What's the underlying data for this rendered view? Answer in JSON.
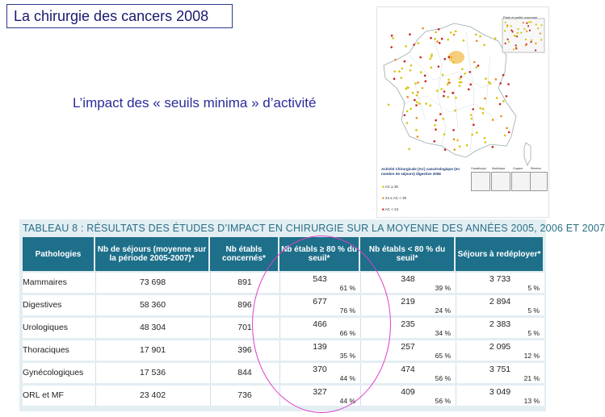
{
  "slide": {
    "title": "La chirurgie des cancers 2008",
    "subtitle": "L’impact des « seuils minima » d’activité"
  },
  "map": {
    "inset_title": "Paris et petite couronne",
    "caption": "Activité Chirurgicale (AC) cancérologique (en nombre de séjours) digestive 2008",
    "legend": [
      "AC ≥ 30",
      "24 ≤ AC < 30",
      "AC < 24"
    ],
    "legend_colors": [
      "#d6c400",
      "#f08a1c",
      "#cc1f1f"
    ],
    "insets": [
      "Guadeloupe",
      "Martinique",
      "Guyane",
      "Réunion"
    ]
  },
  "table": {
    "title": "TABLEAU 8 : RÉSULTATS DES ÉTUDES D’IMPACT EN CHIRURGIE SUR LA MOYENNE DES ANNÉES 2005, 2006 ET 2007",
    "headers": [
      "Pathologies",
      "Nb de séjours (moyenne sur la période 2005-2007)*",
      "Nb établs concernés*",
      "Nb établs ≥ 80 % du seuil*",
      "Nb établs < 80 % du seuil*",
      "Séjours à redéployer*"
    ],
    "rows": [
      {
        "pathologie": "Mammaires",
        "sejours": "73 698",
        "etabs": "891",
        "ge80": "543",
        "ge80_pct": "61 %",
        "lt80": "348",
        "lt80_pct": "39 %",
        "redeploy": "3 733",
        "redeploy_pct": "5 %"
      },
      {
        "pathologie": "Digestives",
        "sejours": "58 360",
        "etabs": "896",
        "ge80": "677",
        "ge80_pct": "76 %",
        "lt80": "219",
        "lt80_pct": "24 %",
        "redeploy": "2 894",
        "redeploy_pct": "5 %"
      },
      {
        "pathologie": "Urologiques",
        "sejours": "48 304",
        "etabs": "701",
        "ge80": "466",
        "ge80_pct": "66 %",
        "lt80": "235",
        "lt80_pct": "34 %",
        "redeploy": "2 383",
        "redeploy_pct": "5 %"
      },
      {
        "pathologie": "Thoraciques",
        "sejours": "17 901",
        "etabs": "396",
        "ge80": "139",
        "ge80_pct": "35 %",
        "lt80": "257",
        "lt80_pct": "65 %",
        "redeploy": "2 095",
        "redeploy_pct": "12 %"
      },
      {
        "pathologie": "Gynécologiques",
        "sejours": "17 536",
        "etabs": "844",
        "ge80": "370",
        "ge80_pct": "44 %",
        "lt80": "474",
        "lt80_pct": "56 %",
        "redeploy": "3 751",
        "redeploy_pct": "21 %"
      },
      {
        "pathologie": "ORL et MF",
        "sejours": "23 402",
        "etabs": "736",
        "ge80": "327",
        "ge80_pct": "44 %",
        "lt80": "409",
        "lt80_pct": "56 %",
        "redeploy": "3 049",
        "redeploy_pct": "13 %"
      }
    ]
  }
}
